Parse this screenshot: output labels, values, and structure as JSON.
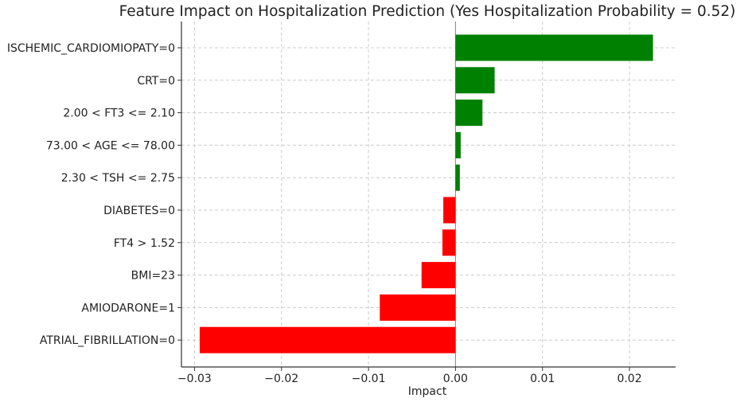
{
  "chart_data": {
    "type": "bar",
    "orientation": "horizontal",
    "title": "Feature Impact on Hospitalization Prediction (Yes Hospitalization Probability = 0.52)",
    "xlabel": "Impact",
    "ylabel": "",
    "xlim": [
      -0.0315,
      0.0253
    ],
    "x_ticks": [
      -0.03,
      -0.02,
      -0.01,
      0.0,
      0.01,
      0.02
    ],
    "x_tick_labels": [
      "−0.03",
      "−0.02",
      "−0.01",
      "0.00",
      "0.01",
      "0.02"
    ],
    "grid": true,
    "categories": [
      "ISCHEMIC_CARDIOMIOPATY=0",
      "CRT=0",
      "2.00 < FT3 <= 2.10",
      "73.00 < AGE <= 78.00",
      "2.30 < TSH <= 2.75",
      "DIABETES=0",
      "FT4 > 1.52",
      "BMI=23",
      "AMIODARONE=1",
      "ATRIAL_FIBRILLATION=0"
    ],
    "values": [
      0.0227,
      0.0045,
      0.0031,
      0.0006,
      0.0005,
      -0.0014,
      -0.0015,
      -0.0039,
      -0.0087,
      -0.0294
    ],
    "colors": {
      "positive": "#008000",
      "negative": "#ff0000"
    }
  }
}
